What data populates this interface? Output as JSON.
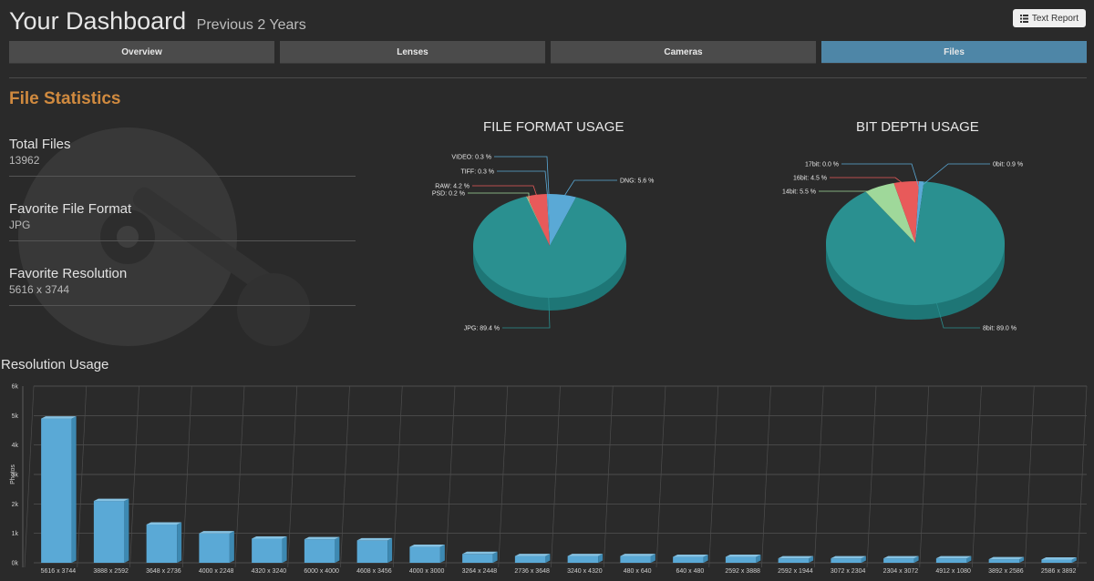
{
  "header": {
    "title": "Your Dashboard",
    "subtitle": "Previous 2 Years",
    "report_button": "Text Report",
    "report_icon": "list-icon"
  },
  "tabs": [
    {
      "label": "Overview",
      "active": false
    },
    {
      "label": "Lenses",
      "active": false
    },
    {
      "label": "Cameras",
      "active": false
    },
    {
      "label": "Files",
      "active": true
    }
  ],
  "section_title": "File Statistics",
  "stats": [
    {
      "label": "Total Files",
      "value": "13962"
    },
    {
      "label": "Favorite File Format",
      "value": "JPG"
    },
    {
      "label": "Favorite Resolution",
      "value": "5616 x 3744"
    }
  ],
  "colors": {
    "teal": "#2a9090",
    "blue": "#5aa9d6",
    "red": "#e85a5a",
    "green": "#9fd89a",
    "accent_orange": "#d08a3f",
    "active_tab": "#4e86a7"
  },
  "chart_data": [
    {
      "type": "pie",
      "title": "FILE FORMAT USAGE",
      "slices": [
        {
          "label": "JPG: 89.4 %",
          "value": 89.4
        },
        {
          "label": "DNG: 5.6 %",
          "value": 5.6
        },
        {
          "label": "VIDEO: 0.3 %",
          "value": 0.3
        },
        {
          "label": "TIFF: 0.3 %",
          "value": 0.3
        },
        {
          "label": "RAW: 4.2 %",
          "value": 4.2
        },
        {
          "label": "PSD: 0.2 %",
          "value": 0.2
        }
      ]
    },
    {
      "type": "pie",
      "title": "BIT DEPTH USAGE",
      "slices": [
        {
          "label": "8bit: 89.0 %",
          "value": 89.0
        },
        {
          "label": "0bit: 0.9 %",
          "value": 0.9
        },
        {
          "label": "17bit: 0.0 %",
          "value": 0.0
        },
        {
          "label": "16bit: 4.5 %",
          "value": 4.5
        },
        {
          "label": "14bit: 5.5 %",
          "value": 5.5
        }
      ]
    },
    {
      "type": "bar",
      "title": "Resolution Usage",
      "ylabel": "Photos",
      "yticks": [
        "0k",
        "1k",
        "2k",
        "3k",
        "4k",
        "5k",
        "6k"
      ],
      "ylim": [
        0,
        6000
      ],
      "categories": [
        "5616 x 3744",
        "3888 x 2592",
        "3648 x 2736",
        "4000 x 2248",
        "4320 x 3240",
        "6000 x 4000",
        "4608 x 3456",
        "4000 x 3000",
        "3264 x 2448",
        "2736 x 3648",
        "3240 x 4320",
        "480 x 640",
        "640 x 480",
        "2592 x 3888",
        "2592 x 1944",
        "3072 x 2304",
        "2304 x 3072",
        "4912 x 1080",
        "3892 x 2586",
        "2586 x 3892"
      ],
      "values": [
        4900,
        2100,
        1300,
        1000,
        820,
        800,
        760,
        540,
        300,
        230,
        230,
        230,
        200,
        200,
        150,
        150,
        150,
        150,
        120,
        110
      ]
    }
  ]
}
